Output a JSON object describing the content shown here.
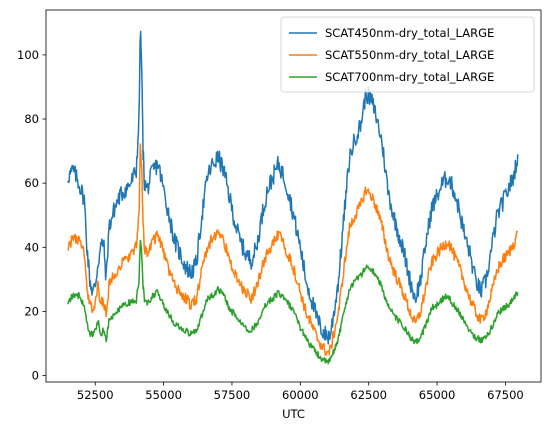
{
  "chart_data": {
    "type": "line",
    "xlabel": "UTC",
    "ylabel": "",
    "xlim": [
      50700,
      68800
    ],
    "ylim": [
      -2,
      114
    ],
    "xticks": [
      52500,
      55000,
      57500,
      60000,
      62500,
      65000,
      67500
    ],
    "yticks": [
      0,
      20,
      40,
      60,
      80,
      100
    ],
    "grid": false,
    "legend": "top-right",
    "series": [
      {
        "name": "SCAT450nm-dry_total_LARGE",
        "color": "#1f77b4",
        "x": [
          51500,
          51700,
          51900,
          52100,
          52200,
          52300,
          52400,
          52500,
          52600,
          52700,
          52800,
          52900,
          53000,
          53200,
          53400,
          53600,
          53800,
          54000,
          54100,
          54150,
          54200,
          54250,
          54300,
          54400,
          54600,
          54800,
          55000,
          55200,
          55400,
          55600,
          55800,
          56000,
          56200,
          56400,
          56600,
          56800,
          57000,
          57200,
          57400,
          57600,
          57800,
          58000,
          58200,
          58400,
          58600,
          58800,
          59000,
          59200,
          59400,
          59600,
          59800,
          60000,
          60200,
          60400,
          60600,
          60800,
          61000,
          61100,
          61200,
          61400,
          61600,
          61800,
          62000,
          62200,
          62400,
          62600,
          62800,
          63000,
          63200,
          63400,
          63600,
          63800,
          64000,
          64200,
          64400,
          64600,
          64800,
          65000,
          65200,
          65400,
          65600,
          65800,
          66000,
          66200,
          66400,
          66600,
          66800,
          67000,
          67200,
          67400,
          67600,
          67800,
          67950
        ],
        "y": [
          62,
          64,
          60,
          55,
          40,
          30,
          26,
          28,
          35,
          40,
          42,
          30,
          46,
          52,
          56,
          58,
          60,
          64,
          80,
          108,
          96,
          70,
          60,
          58,
          64,
          66,
          58,
          50,
          42,
          38,
          34,
          32,
          35,
          50,
          62,
          66,
          68,
          64,
          56,
          48,
          42,
          38,
          36,
          40,
          50,
          58,
          62,
          66,
          62,
          56,
          48,
          40,
          30,
          24,
          18,
          14,
          12,
          13,
          18,
          30,
          50,
          68,
          74,
          78,
          88,
          86,
          80,
          72,
          58,
          50,
          44,
          38,
          30,
          24,
          30,
          42,
          52,
          56,
          60,
          62,
          58,
          52,
          44,
          38,
          30,
          26,
          30,
          40,
          50,
          54,
          58,
          62,
          69
        ]
      },
      {
        "name": "SCAT550nm-dry_total_LARGE",
        "color": "#ff7f0e",
        "x": [
          51500,
          51700,
          51900,
          52100,
          52200,
          52300,
          52400,
          52500,
          52600,
          52700,
          52800,
          52900,
          53000,
          53200,
          53400,
          53600,
          53800,
          54000,
          54100,
          54150,
          54200,
          54250,
          54300,
          54400,
          54600,
          54800,
          55000,
          55200,
          55400,
          55600,
          55800,
          56000,
          56200,
          56400,
          56600,
          56800,
          57000,
          57200,
          57400,
          57600,
          57800,
          58000,
          58200,
          58400,
          58600,
          58800,
          59000,
          59200,
          59400,
          59600,
          59800,
          60000,
          60200,
          60400,
          60600,
          60800,
          61000,
          61100,
          61200,
          61400,
          61600,
          61800,
          62000,
          62200,
          62400,
          62600,
          62800,
          63000,
          63200,
          63400,
          63600,
          63800,
          64000,
          64200,
          64400,
          64600,
          64800,
          65000,
          65200,
          65400,
          65600,
          65800,
          66000,
          66200,
          66400,
          66600,
          66800,
          67000,
          67200,
          67400,
          67600,
          67800,
          67950
        ],
        "y": [
          40,
          43,
          42,
          38,
          26,
          22,
          21,
          22,
          28,
          22,
          24,
          18,
          28,
          32,
          34,
          36,
          38,
          40,
          50,
          72,
          64,
          48,
          40,
          38,
          42,
          44,
          38,
          33,
          28,
          26,
          24,
          22,
          24,
          33,
          40,
          43,
          45,
          42,
          36,
          32,
          28,
          26,
          24,
          28,
          34,
          38,
          41,
          44,
          41,
          37,
          32,
          26,
          20,
          16,
          12,
          9,
          7,
          8,
          12,
          20,
          34,
          46,
          50,
          53,
          58,
          56,
          52,
          46,
          38,
          33,
          29,
          25,
          20,
          16,
          20,
          28,
          35,
          38,
          40,
          42,
          38,
          34,
          29,
          24,
          20,
          17,
          20,
          26,
          33,
          36,
          38,
          41,
          45
        ]
      },
      {
        "name": "SCAT700nm-dry_total_LARGE",
        "color": "#2ca02c",
        "x": [
          51500,
          51700,
          51900,
          52100,
          52200,
          52300,
          52400,
          52500,
          52600,
          52700,
          52800,
          52900,
          53000,
          53200,
          53400,
          53600,
          53800,
          54000,
          54100,
          54150,
          54200,
          54250,
          54300,
          54400,
          54600,
          54800,
          55000,
          55200,
          55400,
          55600,
          55800,
          56000,
          56200,
          56400,
          56600,
          56800,
          57000,
          57200,
          57400,
          57600,
          57800,
          58000,
          58200,
          58400,
          58600,
          58800,
          59000,
          59200,
          59400,
          59600,
          59800,
          60000,
          60200,
          60400,
          60600,
          60800,
          61000,
          61100,
          61200,
          61400,
          61600,
          61800,
          62000,
          62200,
          62400,
          62600,
          62800,
          63000,
          63200,
          63400,
          63600,
          63800,
          64000,
          64200,
          64400,
          64600,
          64800,
          65000,
          65200,
          65400,
          65600,
          65800,
          66000,
          66200,
          66400,
          66600,
          66800,
          67000,
          67200,
          67400,
          67600,
          67800,
          67950
        ],
        "y": [
          23,
          25,
          25,
          22,
          16,
          13,
          13,
          14,
          17,
          13,
          14,
          11,
          17,
          19,
          21,
          22,
          23,
          23,
          30,
          42,
          38,
          28,
          24,
          22,
          25,
          26,
          22,
          19,
          16,
          15,
          14,
          13,
          14,
          19,
          24,
          25,
          27,
          25,
          21,
          19,
          17,
          15,
          14,
          16,
          20,
          23,
          24,
          26,
          24,
          22,
          19,
          15,
          12,
          9,
          7,
          5,
          4,
          5,
          7,
          12,
          20,
          27,
          30,
          31,
          34,
          33,
          31,
          27,
          22,
          19,
          17,
          15,
          12,
          10,
          12,
          16,
          21,
          22,
          24,
          25,
          22,
          20,
          17,
          14,
          12,
          11,
          12,
          15,
          19,
          21,
          22,
          24,
          26
        ]
      }
    ]
  }
}
